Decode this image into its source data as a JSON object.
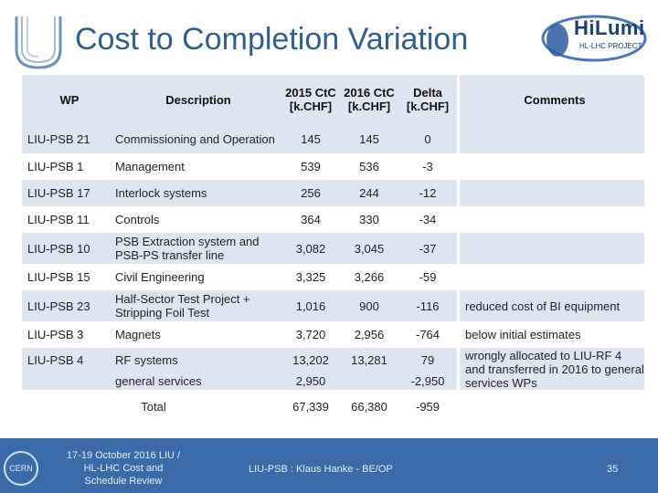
{
  "title": "Cost to Completion Variation",
  "logo_right": {
    "line1": "HiLumi",
    "line2": "HL-LHC PROJECT"
  },
  "logo_left": {
    "name": "LIU"
  },
  "table": {
    "headers": {
      "wp": "WP",
      "description": "Description",
      "ctc2015": "2015 CtC [k.CHF]",
      "ctc2016": "2016 CtC [k.CHF]",
      "delta": "Delta [k.CHF]",
      "comments": "Comments"
    },
    "rows": [
      {
        "wp": "LIU-PSB 21",
        "description": "Commissioning and Operation",
        "ctc2015": "145",
        "ctc2016": "145",
        "delta": "0",
        "comments": ""
      },
      {
        "wp": "LIU-PSB 1",
        "description": "Management",
        "ctc2015": "539",
        "ctc2016": "536",
        "delta": "-3",
        "comments": ""
      },
      {
        "wp": "LIU-PSB 17",
        "description": "Interlock systems",
        "ctc2015": "256",
        "ctc2016": "244",
        "delta": "-12",
        "comments": ""
      },
      {
        "wp": "LIU-PSB 11",
        "description": "Controls",
        "ctc2015": "364",
        "ctc2016": "330",
        "delta": "-34",
        "comments": ""
      },
      {
        "wp": "LIU-PSB 10",
        "description": "PSB Extraction system and PSB-PS transfer line",
        "ctc2015": "3,082",
        "ctc2016": "3,045",
        "delta": "-37",
        "comments": ""
      },
      {
        "wp": "LIU-PSB 15",
        "description": "Civil Engineering",
        "ctc2015": "3,325",
        "ctc2016": "3,266",
        "delta": "-59",
        "comments": ""
      },
      {
        "wp": "LIU-PSB 23",
        "description": "Half-Sector Test Project + Stripping Foil Test",
        "ctc2015": "1,016",
        "ctc2016": "900",
        "delta": "-116",
        "comments": "reduced cost of BI equipment"
      },
      {
        "wp": "LIU-PSB 3",
        "description": "Magnets",
        "ctc2015": "3,720",
        "ctc2016": "2,956",
        "delta": "-764",
        "comments": "below initial estimates"
      }
    ],
    "psb4": {
      "wp": "LIU-PSB 4",
      "desc1": "RF systems",
      "desc2": "general services",
      "ctc2015_1": "13,202",
      "ctc2015_2": "2,950",
      "ctc2016_1": "13,281",
      "delta_1": "79",
      "delta_2": "-2,950",
      "comments": "wrongly allocated to LIU-RF 4 and transferred in 2016 to general services WPs"
    },
    "total": {
      "label": "Total",
      "ctc2015": "67,339",
      "ctc2016": "66,380",
      "delta": "-959"
    }
  },
  "footer": {
    "event": "17-19 October 2016 LIU / HL-LHC Cost and Schedule Review",
    "author": "LIU-PSB : Klaus Hanke - BE/OP",
    "page": "35",
    "cern_logo": "CERN"
  },
  "colors": {
    "title": "#2f5e91",
    "row_shade": "#dde5f0",
    "footer": "#3a6aa8"
  }
}
